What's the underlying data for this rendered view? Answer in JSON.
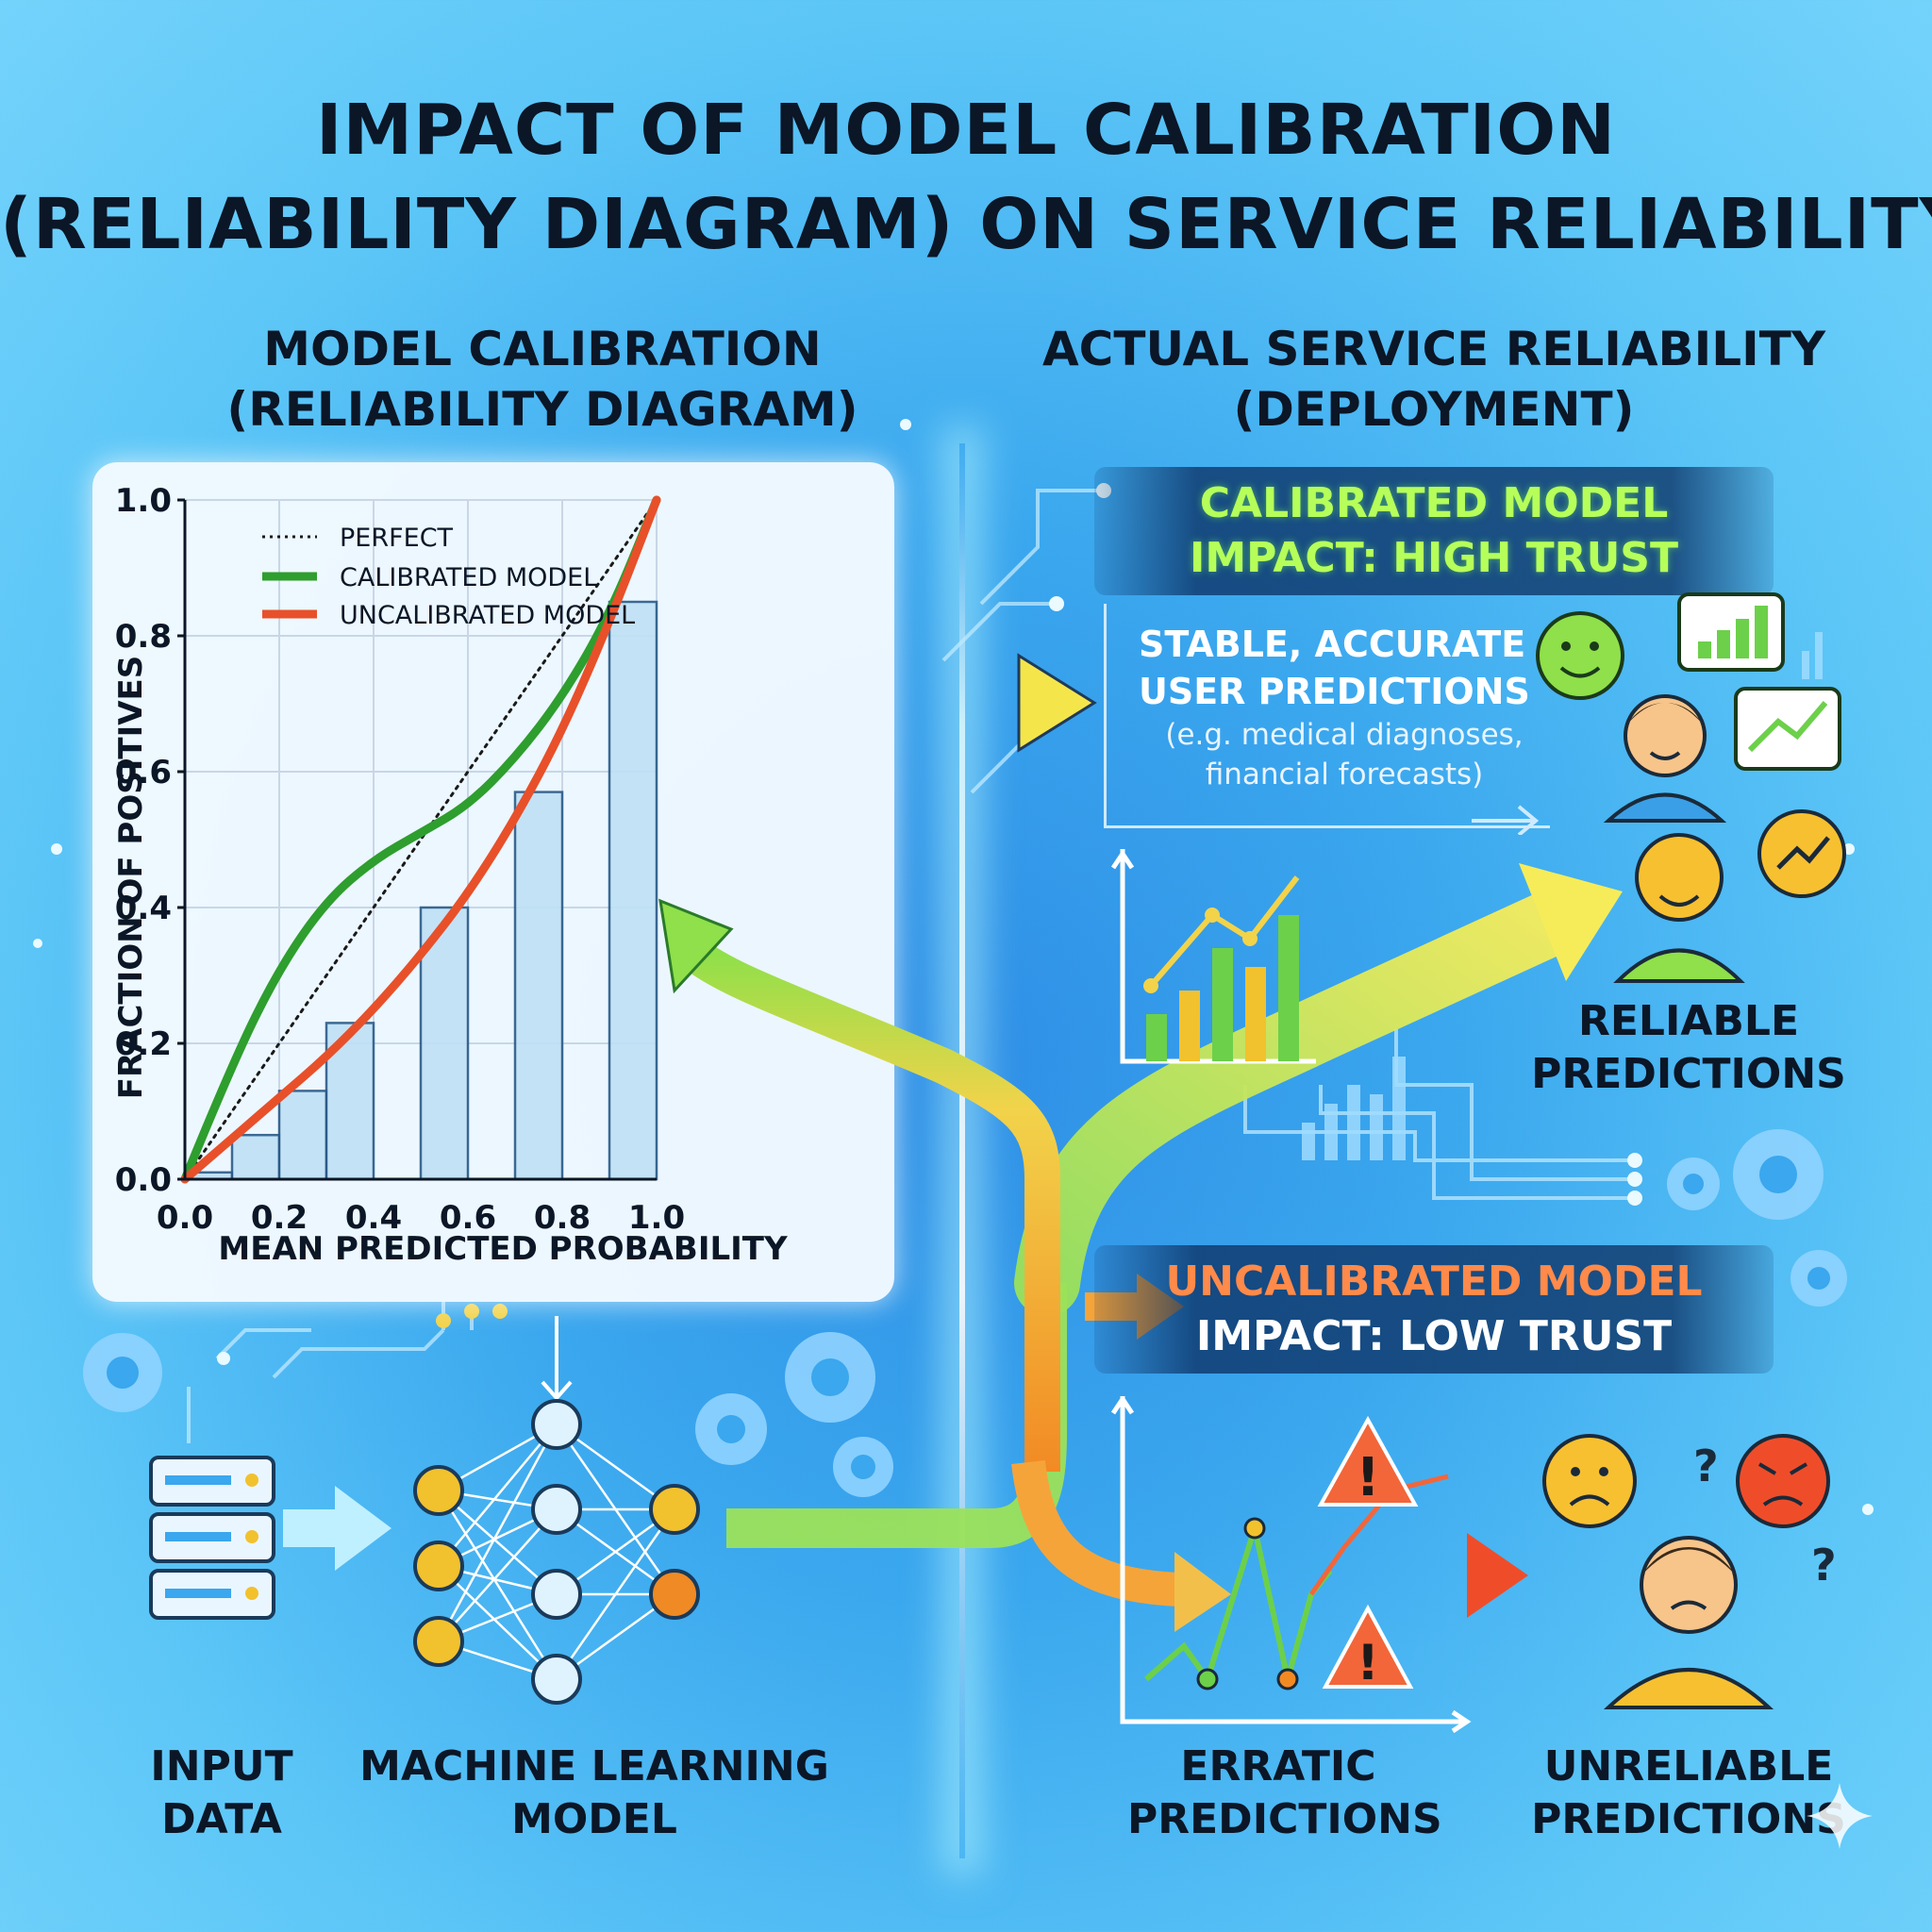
{
  "title": {
    "line1": "IMPACT OF MODEL CALIBRATION",
    "line2": "(RELIABILITY DIAGRAM) ON SERVICE RELIABILITY"
  },
  "left_section": {
    "line1": "MODEL CALIBRATION",
    "line2": "(RELIABILITY DIAGRAM)"
  },
  "right_section": {
    "line1": "ACTUAL SERVICE RELIABILITY",
    "line2": "(DEPLOYMENT)"
  },
  "chart_data": {
    "type": "line",
    "title": "",
    "xlabel": "MEAN PREDICTED PROBABILITY",
    "ylabel": "FRACTION OF POSITIVES",
    "xlim": [
      0,
      1
    ],
    "ylim": [
      0,
      1
    ],
    "xticks": [
      "0.0",
      "0.2",
      "0.4",
      "0.6",
      "0.8",
      "1.0"
    ],
    "yticks": [
      "0.0",
      "0.2",
      "0.4",
      "0.6",
      "0.8",
      "1.0"
    ],
    "grid": true,
    "legend_position": "top-left",
    "legend": [
      "PERFECT",
      "CALIBRATED MODEL",
      "UNCALIBRATED MODEL"
    ],
    "histogram": {
      "bins": [
        0.0,
        0.1,
        0.2,
        0.3,
        0.4,
        0.5,
        0.6,
        0.7,
        0.8,
        0.9,
        1.0
      ],
      "heights": [
        0.01,
        0.065,
        0.13,
        0.23,
        0.0,
        0.4,
        0.0,
        0.57,
        0.0,
        0.85
      ]
    },
    "series": [
      {
        "name": "PERFECT",
        "color": "#1a1a1a",
        "style": "dotted",
        "x": [
          0.0,
          1.0
        ],
        "y": [
          0.0,
          1.0
        ]
      },
      {
        "name": "CALIBRATED MODEL",
        "color": "#2e9e2e",
        "style": "solid",
        "x": [
          0.0,
          0.1,
          0.2,
          0.3,
          0.4,
          0.5,
          0.6,
          0.7,
          0.8,
          0.9,
          1.0
        ],
        "y": [
          0.0,
          0.17,
          0.31,
          0.41,
          0.47,
          0.51,
          0.55,
          0.62,
          0.71,
          0.83,
          1.0
        ]
      },
      {
        "name": "UNCALIBRATED MODEL",
        "color": "#e8502a",
        "style": "solid",
        "x": [
          0.0,
          0.1,
          0.2,
          0.3,
          0.4,
          0.5,
          0.6,
          0.7,
          0.8,
          0.9,
          1.0
        ],
        "y": [
          0.0,
          0.06,
          0.12,
          0.18,
          0.25,
          0.33,
          0.42,
          0.53,
          0.66,
          0.82,
          1.0
        ]
      }
    ]
  },
  "calibrated_banner": {
    "line1": "CALIBRATED MODEL",
    "line2": "IMPACT: HIGH TRUST"
  },
  "info_box": {
    "heading1": "STABLE, ACCURATE",
    "heading2": "USER PREDICTIONS",
    "sub1": "(e.g. medical diagnoses,",
    "sub2": "financial forecasts)"
  },
  "reliable_label": {
    "line1": "RELIABLE",
    "line2": "PREDICTIONS"
  },
  "uncalibrated_banner": {
    "line1": "UNCALIBRATED MODEL",
    "line2": "IMPACT: LOW TRUST"
  },
  "bottom_labels": {
    "input": {
      "line1": "INPUT",
      "line2": "DATA"
    },
    "model": {
      "line1": "MACHINE LEARNING",
      "line2": "MODEL"
    },
    "erratic": {
      "line1": "ERRATIC",
      "line2": "PREDICTIONS"
    },
    "unreliable": {
      "line1": "UNRELIABLE",
      "line2": "PREDICTIONS"
    }
  },
  "question_marks": [
    "?",
    "?"
  ],
  "warning_symbol": "!",
  "colors": {
    "good": "#2e9e2e",
    "bad": "#e8502a",
    "flow_yellow": "#f3e04a",
    "flow_green": "#9be15a",
    "node_yellow": "#f2c12e",
    "node_orange": "#f08a24"
  }
}
